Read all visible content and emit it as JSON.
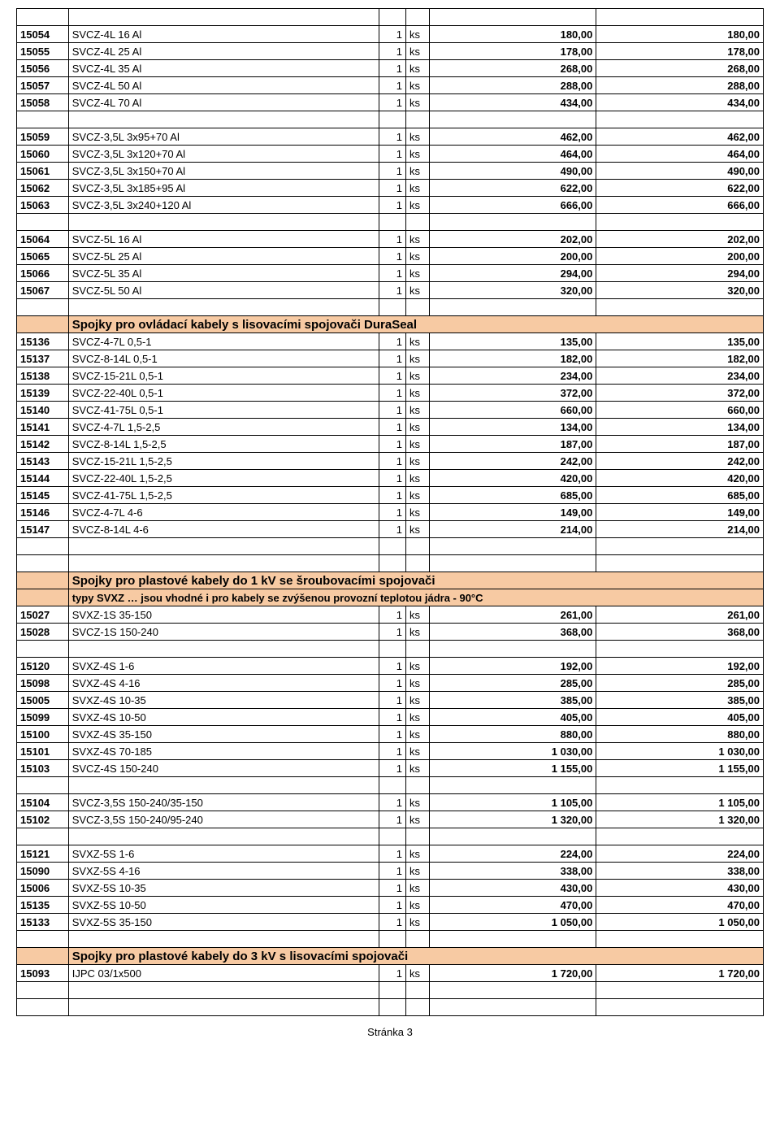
{
  "footer": "Stránka 3",
  "colors": {
    "header_bg": "#f7caa3",
    "border": "#000000",
    "text": "#000000"
  },
  "sections": [
    {
      "type": "rows",
      "rows": [
        {
          "blank": true
        },
        {
          "code": "15054",
          "desc": "SVCZ-4L 16 Al",
          "qty": "1",
          "unit": "ks",
          "p1": "180,00",
          "p2": "180,00"
        },
        {
          "code": "15055",
          "desc": "SVCZ-4L 25 Al",
          "qty": "1",
          "unit": "ks",
          "p1": "178,00",
          "p2": "178,00"
        },
        {
          "code": "15056",
          "desc": "SVCZ-4L 35 Al",
          "qty": "1",
          "unit": "ks",
          "p1": "268,00",
          "p2": "268,00"
        },
        {
          "code": "15057",
          "desc": "SVCZ-4L 50 Al",
          "qty": "1",
          "unit": "ks",
          "p1": "288,00",
          "p2": "288,00"
        },
        {
          "code": "15058",
          "desc": "SVCZ-4L 70 Al",
          "qty": "1",
          "unit": "ks",
          "p1": "434,00",
          "p2": "434,00"
        },
        {
          "blank": true
        },
        {
          "code": "15059",
          "desc": "SVCZ-3,5L 3x95+70 Al",
          "qty": "1",
          "unit": "ks",
          "p1": "462,00",
          "p2": "462,00"
        },
        {
          "code": "15060",
          "desc": "SVCZ-3,5L 3x120+70 Al",
          "qty": "1",
          "unit": "ks",
          "p1": "464,00",
          "p2": "464,00"
        },
        {
          "code": "15061",
          "desc": "SVCZ-3,5L 3x150+70 Al",
          "qty": "1",
          "unit": "ks",
          "p1": "490,00",
          "p2": "490,00"
        },
        {
          "code": "15062",
          "desc": "SVCZ-3,5L 3x185+95 Al",
          "qty": "1",
          "unit": "ks",
          "p1": "622,00",
          "p2": "622,00"
        },
        {
          "code": "15063",
          "desc": "SVCZ-3,5L 3x240+120 Al",
          "qty": "1",
          "unit": "ks",
          "p1": "666,00",
          "p2": "666,00"
        },
        {
          "blank": true
        },
        {
          "code": "15064",
          "desc": "SVCZ-5L 16 Al",
          "qty": "1",
          "unit": "ks",
          "p1": "202,00",
          "p2": "202,00"
        },
        {
          "code": "15065",
          "desc": "SVCZ-5L 25 Al",
          "qty": "1",
          "unit": "ks",
          "p1": "200,00",
          "p2": "200,00"
        },
        {
          "code": "15066",
          "desc": "SVCZ-5L 35 Al",
          "qty": "1",
          "unit": "ks",
          "p1": "294,00",
          "p2": "294,00"
        },
        {
          "code": "15067",
          "desc": "SVCZ-5L 50 Al",
          "qty": "1",
          "unit": "ks",
          "p1": "320,00",
          "p2": "320,00"
        },
        {
          "blank": true
        }
      ]
    },
    {
      "type": "header",
      "title": "Spojky pro ovládací kabely s lisovacími spojovači DuraSeal"
    },
    {
      "type": "rows",
      "rows": [
        {
          "code": "15136",
          "desc": "SVCZ-4-7L 0,5-1",
          "qty": "1",
          "unit": "ks",
          "p1": "135,00",
          "p2": "135,00"
        },
        {
          "code": "15137",
          "desc": "SVCZ-8-14L 0,5-1",
          "qty": "1",
          "unit": "ks",
          "p1": "182,00",
          "p2": "182,00"
        },
        {
          "code": "15138",
          "desc": "SVCZ-15-21L 0,5-1",
          "qty": "1",
          "unit": "ks",
          "p1": "234,00",
          "p2": "234,00"
        },
        {
          "code": "15139",
          "desc": "SVCZ-22-40L 0,5-1",
          "qty": "1",
          "unit": "ks",
          "p1": "372,00",
          "p2": "372,00"
        },
        {
          "code": "15140",
          "desc": "SVCZ-41-75L 0,5-1",
          "qty": "1",
          "unit": "ks",
          "p1": "660,00",
          "p2": "660,00"
        },
        {
          "code": "15141",
          "desc": "SVCZ-4-7L 1,5-2,5",
          "qty": "1",
          "unit": "ks",
          "p1": "134,00",
          "p2": "134,00"
        },
        {
          "code": "15142",
          "desc": "SVCZ-8-14L 1,5-2,5",
          "qty": "1",
          "unit": "ks",
          "p1": "187,00",
          "p2": "187,00"
        },
        {
          "code": "15143",
          "desc": "SVCZ-15-21L 1,5-2,5",
          "qty": "1",
          "unit": "ks",
          "p1": "242,00",
          "p2": "242,00"
        },
        {
          "code": "15144",
          "desc": "SVCZ-22-40L 1,5-2,5",
          "qty": "1",
          "unit": "ks",
          "p1": "420,00",
          "p2": "420,00"
        },
        {
          "code": "15145",
          "desc": "SVCZ-41-75L 1,5-2,5",
          "qty": "1",
          "unit": "ks",
          "p1": "685,00",
          "p2": "685,00"
        },
        {
          "code": "15146",
          "desc": "SVCZ-4-7L 4-6",
          "qty": "1",
          "unit": "ks",
          "p1": "149,00",
          "p2": "149,00"
        },
        {
          "code": "15147",
          "desc": "SVCZ-8-14L 4-6",
          "qty": "1",
          "unit": "ks",
          "p1": "214,00",
          "p2": "214,00"
        },
        {
          "blank": true
        },
        {
          "blank": true
        }
      ]
    },
    {
      "type": "header",
      "title": "Spojky pro plastové kabely do 1 kV se šroubovacími spojovači",
      "subtitle": "typy SVXZ … jsou vhodné i pro kabely se zvýšenou provozní teplotou jádra - 90°C"
    },
    {
      "type": "rows",
      "rows": [
        {
          "code": "15027",
          "desc": "SVXZ-1S 35-150",
          "qty": "1",
          "unit": "ks",
          "p1": "261,00",
          "p2": "261,00"
        },
        {
          "code": "15028",
          "desc": "SVCZ-1S 150-240",
          "qty": "1",
          "unit": "ks",
          "p1": "368,00",
          "p2": "368,00"
        },
        {
          "blank": true
        },
        {
          "code": "15120",
          "desc": "SVXZ-4S 1-6",
          "qty": "1",
          "unit": "ks",
          "p1": "192,00",
          "p2": "192,00"
        },
        {
          "code": "15098",
          "desc": "SVXZ-4S 4-16",
          "qty": "1",
          "unit": "ks",
          "p1": "285,00",
          "p2": "285,00"
        },
        {
          "code": "15005",
          "desc": "SVXZ-4S 10-35",
          "qty": "1",
          "unit": "ks",
          "p1": "385,00",
          "p2": "385,00"
        },
        {
          "code": "15099",
          "desc": "SVXZ-4S 10-50",
          "qty": "1",
          "unit": "ks",
          "p1": "405,00",
          "p2": "405,00"
        },
        {
          "code": "15100",
          "desc": "SVXZ-4S 35-150",
          "qty": "1",
          "unit": "ks",
          "p1": "880,00",
          "p2": "880,00"
        },
        {
          "code": "15101",
          "desc": "SVXZ-4S 70-185",
          "qty": "1",
          "unit": "ks",
          "p1": "1 030,00",
          "p2": "1 030,00"
        },
        {
          "code": "15103",
          "desc": "SVCZ-4S 150-240",
          "qty": "1",
          "unit": "ks",
          "p1": "1 155,00",
          "p2": "1 155,00"
        },
        {
          "blank": true
        },
        {
          "code": "15104",
          "desc": "SVCZ-3,5S 150-240/35-150",
          "qty": "1",
          "unit": "ks",
          "p1": "1 105,00",
          "p2": "1 105,00"
        },
        {
          "code": "15102",
          "desc": "SVCZ-3,5S 150-240/95-240",
          "qty": "1",
          "unit": "ks",
          "p1": "1 320,00",
          "p2": "1 320,00"
        },
        {
          "blank": true
        },
        {
          "code": "15121",
          "desc": "SVXZ-5S 1-6",
          "qty": "1",
          "unit": "ks",
          "p1": "224,00",
          "p2": "224,00"
        },
        {
          "code": "15090",
          "desc": "SVXZ-5S 4-16",
          "qty": "1",
          "unit": "ks",
          "p1": "338,00",
          "p2": "338,00"
        },
        {
          "code": "15006",
          "desc": "SVXZ-5S 10-35",
          "qty": "1",
          "unit": "ks",
          "p1": "430,00",
          "p2": "430,00"
        },
        {
          "code": "15135",
          "desc": "SVXZ-5S 10-50",
          "qty": "1",
          "unit": "ks",
          "p1": "470,00",
          "p2": "470,00"
        },
        {
          "code": "15133",
          "desc": "SVXZ-5S 35-150",
          "qty": "1",
          "unit": "ks",
          "p1": "1 050,00",
          "p2": "1 050,00"
        },
        {
          "blank": true
        }
      ]
    },
    {
      "type": "header",
      "title": "Spojky pro plastové kabely do 3 kV s lisovacími spojovači"
    },
    {
      "type": "rows",
      "rows": [
        {
          "code": "15093",
          "desc": "IJPC 03/1x500",
          "qty": "1",
          "unit": "ks",
          "p1": "1 720,00",
          "p2": "1 720,00"
        },
        {
          "blank": true
        },
        {
          "blank": true
        }
      ]
    }
  ]
}
